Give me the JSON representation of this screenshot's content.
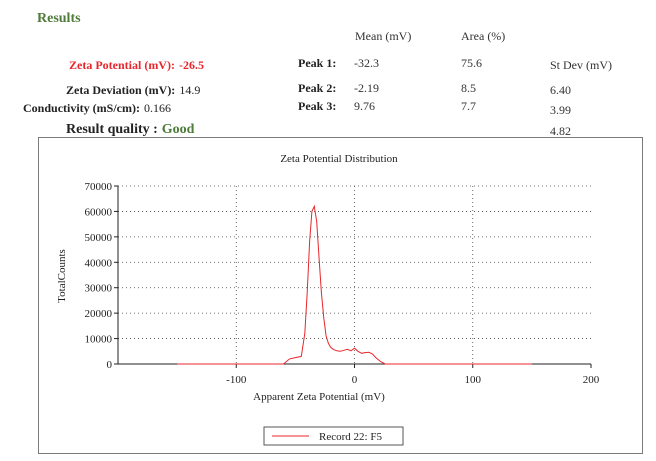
{
  "results": {
    "title": "Results",
    "zeta_potential": {
      "label": "Zeta Potential (mV):",
      "value": "-26.5"
    },
    "zeta_deviation": {
      "label": "Zeta Deviation (mV):",
      "value": "14.9"
    },
    "conductivity": {
      "label": "Conductivity (mS/cm):",
      "value": "0.166"
    },
    "quality": {
      "label": "Result quality :",
      "value": "Good"
    }
  },
  "peaks": {
    "headers": {
      "mean": "Mean (mV)",
      "area": "Area (%)",
      "stdev": "St Dev (mV)"
    },
    "rows": [
      {
        "label": "Peak 1:",
        "mean": "-32.3",
        "area": "75.6",
        "stdev": "6.40"
      },
      {
        "label": "Peak 2:",
        "mean": "-2.19",
        "area": "8.5",
        "stdev": "3.99"
      },
      {
        "label": "Peak 3:",
        "mean": "9.76",
        "area": "7.7",
        "stdev": "4.82"
      }
    ]
  },
  "colors": {
    "accent_green": "#4f7b3a",
    "highlight_red": "#e8262b",
    "series": "#e8262b"
  },
  "chart_data": {
    "type": "line",
    "title": "Zeta Potential Distribution",
    "xlabel": "Apparent Zeta Potential (mV)",
    "ylabel": "TotalCounts",
    "xlim": [
      -200,
      200
    ],
    "ylim": [
      0,
      70000
    ],
    "xticks": [
      -100,
      0,
      100,
      200
    ],
    "yticks": [
      0,
      10000,
      20000,
      30000,
      40000,
      50000,
      60000,
      70000
    ],
    "grid": true,
    "legend": "bottom-center",
    "series": [
      {
        "name": "Record 22: F5",
        "color": "#e8262b",
        "x": [
          -150,
          -60,
          -55,
          -50,
          -45,
          -42,
          -40,
          -38,
          -36,
          -34,
          -32,
          -30,
          -28,
          -26,
          -24,
          -22,
          -20,
          -18,
          -15,
          -12,
          -9,
          -6,
          -3,
          0,
          3,
          6,
          9,
          12,
          15,
          18,
          22,
          26,
          30,
          150
        ],
        "y": [
          0,
          0,
          2000,
          2500,
          3000,
          12000,
          28000,
          48000,
          60000,
          62000,
          56000,
          42000,
          28000,
          18000,
          11000,
          8000,
          6500,
          5800,
          5200,
          5000,
          5400,
          5800,
          5200,
          6200,
          5000,
          4200,
          4500,
          4600,
          4000,
          2500,
          1000,
          0,
          0,
          0
        ]
      }
    ]
  }
}
